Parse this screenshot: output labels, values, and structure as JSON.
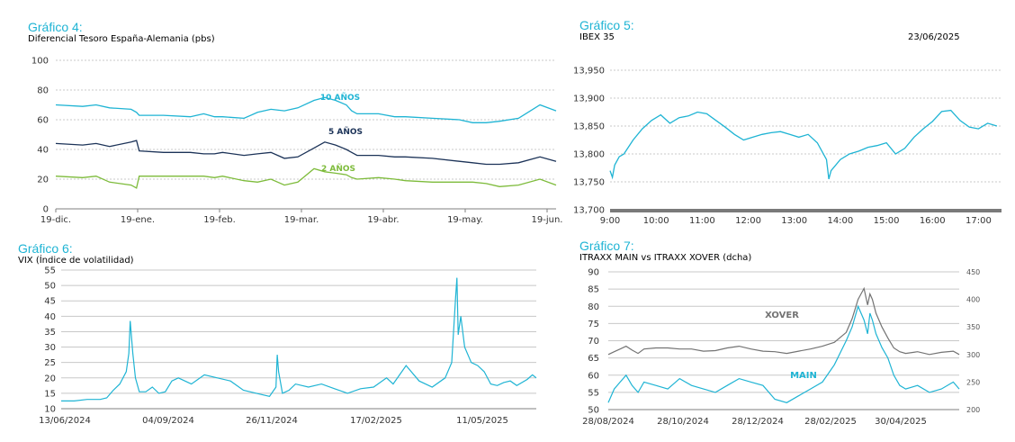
{
  "colors": {
    "accent": "#1fb4d4",
    "navy": "#1c3358",
    "green": "#7dbb3a",
    "gray": "#737373",
    "axis": "#7f7f7f"
  },
  "chart_data": [
    {
      "heading": "Gráfico 4:",
      "title": "Diferencial Tesoro España-Alemania (pbs)",
      "type": "line",
      "ylim": [
        0,
        100
      ],
      "yticks": [
        0,
        20,
        40,
        60,
        80,
        100
      ],
      "xticks": [
        "19-dic.",
        "19-ene.",
        "19-feb.",
        "19-mar.",
        "19-abr.",
        "19-may.",
        "19-jun."
      ],
      "x": [
        0,
        10,
        15,
        20,
        28,
        30,
        31,
        40,
        50,
        55,
        59,
        62,
        70,
        75,
        80,
        85,
        90,
        96,
        100,
        104,
        108,
        110,
        112,
        120,
        126,
        130,
        140,
        150,
        155,
        160,
        165,
        172,
        180,
        186
      ],
      "series": [
        {
          "name": "10 AÑOS",
          "values": [
            70,
            69,
            70,
            68,
            67,
            65,
            63,
            63,
            62,
            64,
            62,
            62,
            61,
            65,
            67,
            66,
            68,
            73,
            75,
            73,
            70,
            66,
            64,
            64,
            62,
            62,
            61,
            60,
            58,
            58,
            59,
            61,
            70,
            66
          ]
        },
        {
          "name": "5 AÑOS",
          "values": [
            44,
            43,
            44,
            42,
            45,
            46,
            39,
            38,
            38,
            37,
            37,
            38,
            36,
            37,
            38,
            34,
            35,
            41,
            45,
            43,
            40,
            38,
            36,
            36,
            35,
            35,
            34,
            32,
            31,
            30,
            30,
            31,
            35,
            32
          ]
        },
        {
          "name": "2 AÑOS",
          "values": [
            22,
            21,
            22,
            18,
            16,
            14,
            22,
            22,
            22,
            22,
            21,
            22,
            19,
            18,
            20,
            16,
            18,
            27,
            25,
            24,
            23,
            21,
            20,
            21,
            20,
            19,
            18,
            18,
            18,
            17,
            15,
            16,
            20,
            16
          ]
        }
      ]
    },
    {
      "heading": "Gráfico 5:",
      "title": "IBEX 35",
      "date": "23/06/2025",
      "type": "line",
      "ylim": [
        13700,
        13950
      ],
      "yticks": [
        "13,700",
        "13,750",
        "13,800",
        "13,850",
        "13,900",
        "13,950"
      ],
      "xticks": [
        "9:00",
        "10:00",
        "11:00",
        "12:00",
        "13:00",
        "14:00",
        "15:00",
        "16:00",
        "17:00"
      ],
      "x": [
        9.0,
        9.05,
        9.1,
        9.2,
        9.3,
        9.5,
        9.7,
        9.9,
        10.1,
        10.3,
        10.5,
        10.7,
        10.9,
        11.1,
        11.3,
        11.5,
        11.7,
        11.9,
        12.1,
        12.3,
        12.5,
        12.7,
        12.9,
        13.1,
        13.3,
        13.5,
        13.6,
        13.7,
        13.75,
        13.8,
        14.0,
        14.2,
        14.4,
        14.6,
        14.8,
        15.0,
        15.2,
        15.4,
        15.6,
        15.8,
        16.0,
        16.2,
        16.4,
        16.6,
        16.8,
        17.0,
        17.2,
        17.4
      ],
      "series": [
        {
          "values": [
            13770,
            13758,
            13780,
            13795,
            13800,
            13825,
            13845,
            13860,
            13870,
            13855,
            13865,
            13868,
            13875,
            13872,
            13860,
            13848,
            13835,
            13825,
            13830,
            13835,
            13838,
            13840,
            13835,
            13830,
            13835,
            13820,
            13805,
            13790,
            13755,
            13770,
            13790,
            13800,
            13805,
            13812,
            13815,
            13820,
            13800,
            13810,
            13830,
            13845,
            13858,
            13876,
            13878,
            13860,
            13848,
            13845,
            13855,
            13850
          ]
        }
      ]
    },
    {
      "heading": "Gráfico 6:",
      "title": "VIX (Índice de volatilidad)",
      "type": "line",
      "ylim": [
        10,
        55
      ],
      "yticks": [
        10,
        15,
        20,
        25,
        30,
        35,
        40,
        45,
        50,
        55
      ],
      "xticks": [
        "13/06/2024",
        "04/09/2024",
        "26/11/2024",
        "17/02/2025",
        "11/05/2025"
      ],
      "x": [
        0,
        10,
        20,
        30,
        35,
        40,
        45,
        50,
        52,
        53,
        55,
        57,
        60,
        65,
        70,
        75,
        80,
        85,
        90,
        100,
        110,
        120,
        130,
        140,
        150,
        160,
        165,
        166,
        167,
        170,
        175,
        180,
        190,
        200,
        210,
        220,
        230,
        240,
        250,
        255,
        265,
        275,
        285,
        295,
        300,
        303,
        304,
        305,
        307,
        310,
        315,
        320,
        325,
        330,
        335,
        340,
        345,
        350,
        358,
        362,
        365
      ],
      "series": [
        {
          "values": [
            12.5,
            12.5,
            13,
            13,
            13.5,
            16,
            18,
            22,
            28,
            38.5,
            28,
            20,
            15.5,
            15.5,
            17,
            15,
            15.5,
            19,
            20,
            18,
            21,
            20,
            19,
            16,
            15,
            14,
            17,
            27.5,
            22,
            15,
            16,
            18,
            17,
            18,
            16.5,
            15,
            16.5,
            17,
            20,
            18,
            24,
            19,
            17,
            20,
            25,
            46,
            52.5,
            34,
            40,
            30,
            25,
            24,
            22,
            18,
            17.5,
            18.5,
            19,
            17.5,
            19.5,
            21,
            20
          ]
        }
      ]
    },
    {
      "heading": "Gráfico 7:",
      "title": "ITRAXX MAIN vs ITRAXX XOVER (dcha)",
      "type": "line",
      "ylim": [
        50,
        90
      ],
      "yticks": [
        50,
        55,
        60,
        65,
        70,
        75,
        80,
        85,
        90
      ],
      "y2lim": [
        200,
        450
      ],
      "y2ticks": [
        200,
        250,
        300,
        350,
        400,
        450
      ],
      "xticks": [
        "28/08/2024",
        "28/10/2024",
        "28/12/2024",
        "28/02/2025",
        "30/04/2025"
      ],
      "x": [
        0,
        5,
        10,
        15,
        20,
        25,
        30,
        40,
        50,
        60,
        70,
        80,
        90,
        100,
        110,
        120,
        130,
        140,
        150,
        160,
        170,
        180,
        190,
        200,
        205,
        210,
        215,
        218,
        220,
        222,
        225,
        230,
        235,
        240,
        245,
        250,
        260,
        270,
        280,
        290,
        295
      ],
      "series": [
        {
          "name": "MAIN",
          "axis": "left",
          "values": [
            52,
            56,
            58,
            60,
            57,
            55,
            58,
            57,
            56,
            59,
            57,
            56,
            55,
            57,
            59,
            58,
            57,
            53,
            52,
            54,
            56,
            58,
            63,
            70,
            74,
            80,
            76,
            72,
            78,
            76,
            72,
            68,
            65,
            60,
            57,
            56,
            57,
            55,
            56,
            58,
            56
          ]
        },
        {
          "name": "XOVER",
          "axis": "right",
          "values": [
            300,
            305,
            310,
            315,
            308,
            302,
            310,
            312,
            312,
            310,
            310,
            306,
            307,
            312,
            315,
            310,
            306,
            305,
            302,
            306,
            310,
            315,
            322,
            340,
            365,
            400,
            420,
            390,
            410,
            400,
            375,
            350,
            330,
            312,
            305,
            302,
            305,
            300,
            304,
            306,
            300
          ]
        }
      ]
    }
  ]
}
